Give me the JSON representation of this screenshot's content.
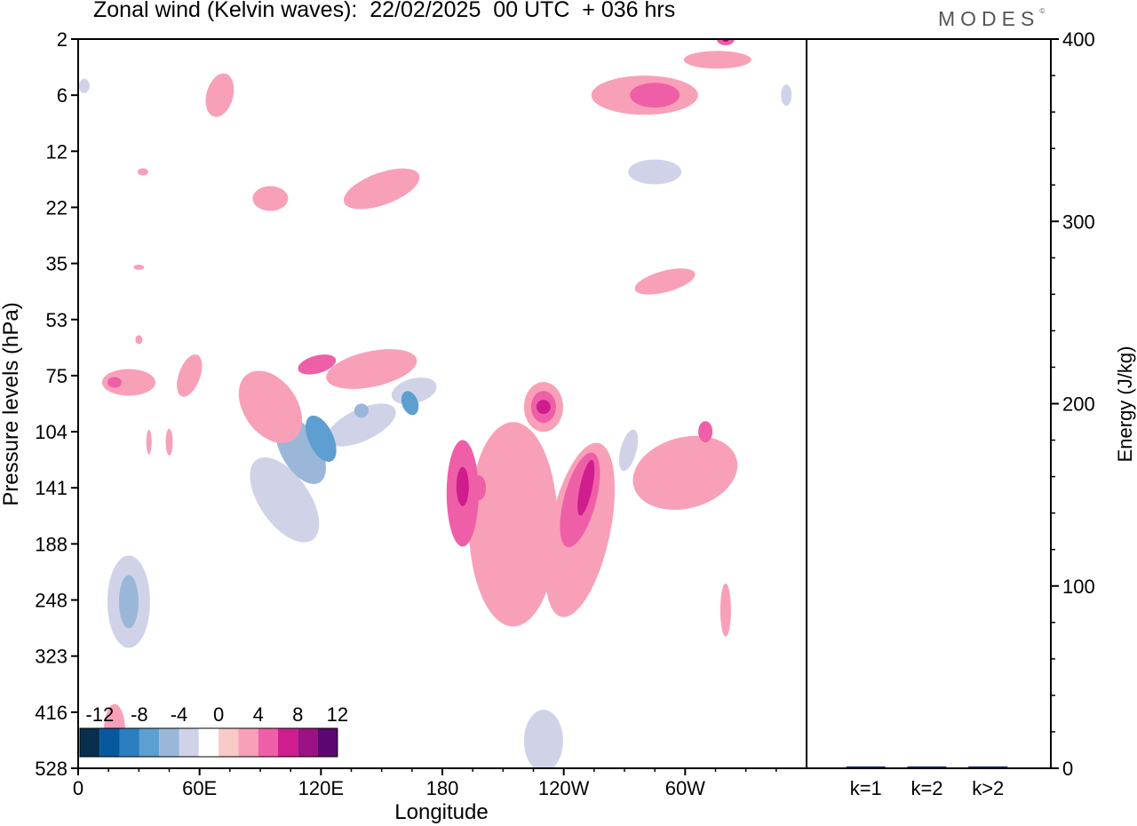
{
  "title": "Zonal wind (Kelvin waves):  22/02/2025  00 UTC  + 036 hrs",
  "logo": "MODES",
  "chart_data": [
    {
      "type": "heatmap",
      "title": "Zonal wind (Kelvin waves):  22/02/2025  00 UTC  + 036 hrs",
      "xlabel": "Longitude",
      "ylabel": "Pressure levels (hPa)",
      "x_ticks": [
        "0",
        "60E",
        "120E",
        "180",
        "120W",
        "60W"
      ],
      "y_ticks": [
        "2",
        "6",
        "12",
        "22",
        "35",
        "53",
        "75",
        "104",
        "141",
        "188",
        "248",
        "323",
        "416",
        "528"
      ],
      "y_scale": "pressure-levels, inverted (2 at top, 528 at bottom)",
      "colorbar": {
        "labels": [
          "-12",
          "-8",
          "-4",
          "0",
          "4",
          "8",
          "12"
        ],
        "levels": [
          -14,
          -12,
          -10,
          -8,
          -6,
          -4,
          -2,
          2,
          4,
          6,
          8,
          10,
          12,
          14
        ],
        "colors": [
          "#08304e",
          "#08589e",
          "#2b7fc0",
          "#5d9fd0",
          "#9ab7d9",
          "#d0d3e8",
          "#ffffff",
          "#f9c9c6",
          "#f8a0b8",
          "#ef5fa7",
          "#cf1d8d",
          "#9c1183",
          "#5c0670"
        ]
      },
      "features": [
        {
          "lon": 120,
          "p": 104,
          "value": -10
        },
        {
          "lon": 170,
          "p": 85,
          "value": -10
        },
        {
          "lon": 25,
          "p": 248,
          "value": -8
        },
        {
          "lon": 230,
          "p": 90,
          "value": 8
        },
        {
          "lon": 248,
          "p": 141,
          "value": 9
        },
        {
          "lon": 190,
          "p": 141,
          "value": 7
        },
        {
          "lon": 120,
          "p": 70,
          "value": 6
        },
        {
          "lon": 270,
          "p": 6,
          "value": 6
        },
        {
          "lon": 320,
          "p": 2,
          "value": 8
        },
        {
          "lon": 290,
          "p": 14,
          "value": -6
        },
        {
          "lon": 230,
          "p": 440,
          "value": -5
        },
        {
          "lon": 310,
          "p": 104,
          "value": 5
        }
      ]
    },
    {
      "type": "bar",
      "categories": [
        "k=1",
        "k=2",
        "k>2"
      ],
      "values": [
        0.4,
        0.3,
        0.6
      ],
      "ylabel": "Energy (J/kg)",
      "ylim": [
        0,
        400
      ],
      "y_ticks": [
        "0",
        "100",
        "200",
        "300",
        "400"
      ],
      "bar_color": "#0a1a5c"
    }
  ]
}
